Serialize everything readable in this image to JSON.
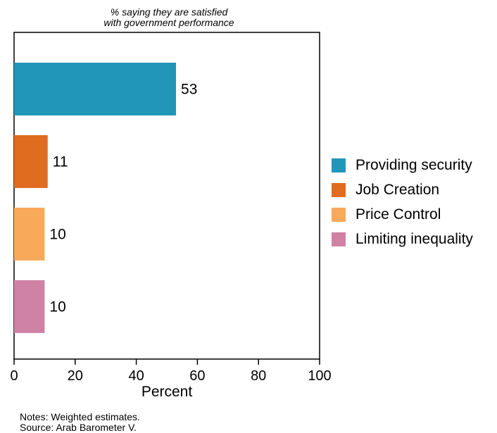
{
  "chart_data": {
    "type": "bar",
    "orientation": "horizontal",
    "title_lines": [
      "% saying they are satisfied",
      "with government performance"
    ],
    "categories": [
      "Providing security",
      "Job Creation",
      "Price Control",
      "Limiting inequality"
    ],
    "values": [
      53,
      11,
      10,
      10
    ],
    "colors": [
      "#2196b8",
      "#e06c1f",
      "#f9a95a",
      "#d082a4"
    ],
    "data_labels": [
      "53",
      "11",
      "10",
      "10"
    ],
    "xlabel": "Percent",
    "ylabel": "",
    "xlim": [
      0,
      100
    ],
    "xticks": [
      "0",
      "20",
      "40",
      "60",
      "80",
      "100"
    ],
    "grid": false,
    "legend": "right"
  },
  "notes": {
    "line1": "Notes: Weighted estimates.",
    "line2": "Source: Arab Barometer V."
  }
}
